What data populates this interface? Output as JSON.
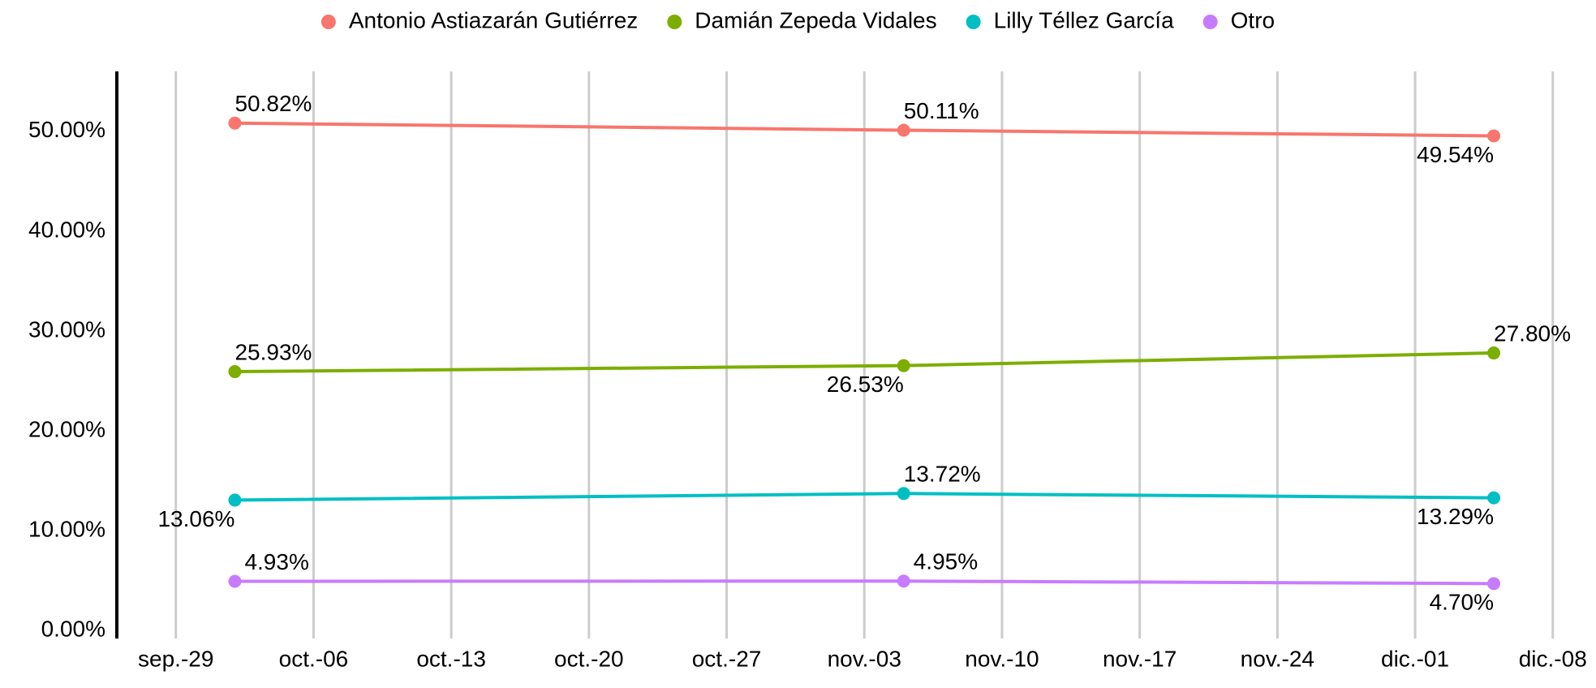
{
  "chart_data": {
    "type": "line",
    "x": [
      "10-02",
      "11-05",
      "12-05"
    ],
    "xlim": [
      "09-26",
      "12-09"
    ],
    "xticks": [
      {
        "value": "09-29",
        "label": "sep.-29"
      },
      {
        "value": "10-06",
        "label": "oct.-06"
      },
      {
        "value": "10-13",
        "label": "oct.-13"
      },
      {
        "value": "10-20",
        "label": "oct.-20"
      },
      {
        "value": "10-27",
        "label": "oct.-27"
      },
      {
        "value": "11-03",
        "label": "nov.-03"
      },
      {
        "value": "11-10",
        "label": "nov.-10"
      },
      {
        "value": "11-17",
        "label": "nov.-17"
      },
      {
        "value": "11-24",
        "label": "nov.-24"
      },
      {
        "value": "12-01",
        "label": "dic.-01"
      },
      {
        "value": "12-08",
        "label": "dic.-08"
      }
    ],
    "ylim": [
      -0.8,
      56
    ],
    "yticks": [
      {
        "value": 0,
        "label": "0.00%"
      },
      {
        "value": 10,
        "label": "10.00%"
      },
      {
        "value": 20,
        "label": "20.00%"
      },
      {
        "value": 30,
        "label": "30.00%"
      },
      {
        "value": 40,
        "label": "40.00%"
      },
      {
        "value": 50,
        "label": "50.00%"
      }
    ],
    "grid": "x",
    "legend": "top",
    "series": [
      {
        "name": "Antonio Astiazarán Gutiérrez",
        "color": "#F8766D",
        "values": [
          50.82,
          50.11,
          49.54
        ],
        "value_labels": [
          "50.82%",
          "50.11%",
          "49.54%"
        ]
      },
      {
        "name": "Damián Zepeda Vidales",
        "color": "#7CAE00",
        "values": [
          25.93,
          26.53,
          27.8
        ],
        "value_labels": [
          "25.93%",
          "26.53%",
          "27.80%"
        ]
      },
      {
        "name": "Lilly Téllez García",
        "color": "#00BFC4",
        "values": [
          13.06,
          13.72,
          13.29
        ],
        "value_labels": [
          "13.06%",
          "13.72%",
          "13.29%"
        ]
      },
      {
        "name": "Otro",
        "color": "#C77CFF",
        "values": [
          4.93,
          4.95,
          4.7
        ],
        "value_labels": [
          "4.93%",
          "4.95%",
          "4.70%"
        ]
      }
    ]
  }
}
